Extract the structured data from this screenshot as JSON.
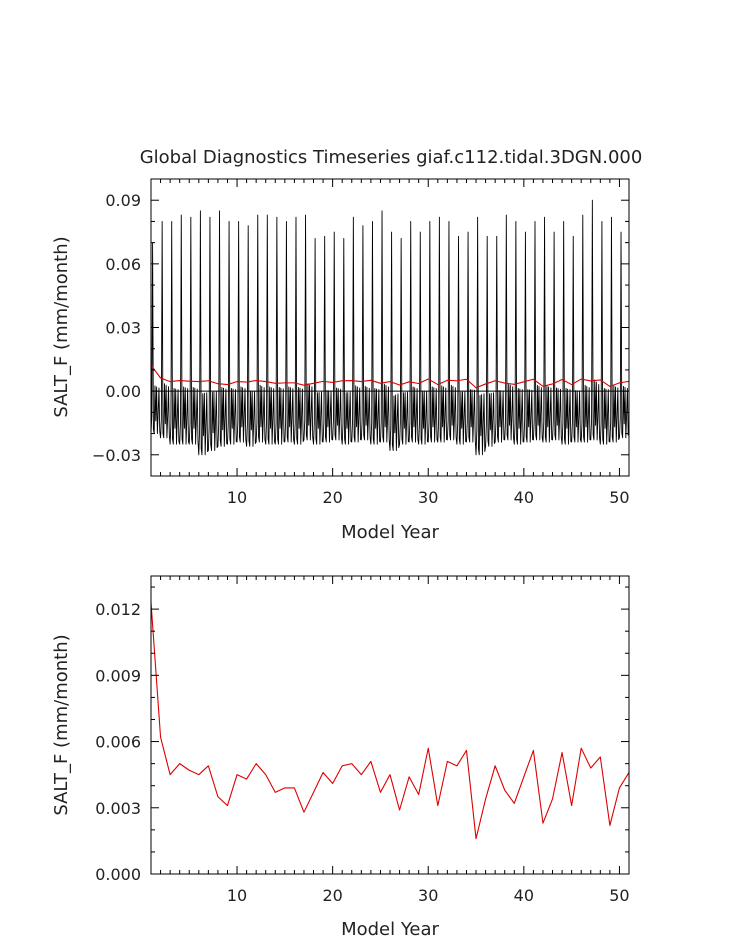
{
  "chart_data": [
    {
      "type": "line",
      "title": "Global Diagnostics Timeseries giaf.c112.tidal.3DGN.000",
      "xlabel": "Model Year",
      "ylabel": "SALT_F (mm/month)",
      "xlim": [
        1,
        51
      ],
      "ylim": [
        -0.04,
        0.1
      ],
      "xticks": [
        10,
        20,
        30,
        40,
        50
      ],
      "xtick_labels": [
        "10",
        "20",
        "30",
        "40",
        "50"
      ],
      "yticks": [
        -0.03,
        0.0,
        0.03,
        0.06,
        0.09
      ],
      "ytick_labels": [
        "−0.03",
        "0.00",
        "0.03",
        "0.06",
        "0.09"
      ],
      "zero_line": true,
      "series": [
        {
          "style": "monthly",
          "color": "#000000",
          "x_start": 1,
          "months_per_year": 12,
          "annual_peaks": [
            0.07,
            0.08,
            0.08,
            0.083,
            0.082,
            0.085,
            0.082,
            0.085,
            0.08,
            0.08,
            0.078,
            0.083,
            0.083,
            0.082,
            0.08,
            0.082,
            0.083,
            0.072,
            0.073,
            0.075,
            0.072,
            0.082,
            0.078,
            0.08,
            0.085,
            0.075,
            0.072,
            0.08,
            0.075,
            0.08,
            0.082,
            0.08,
            0.073,
            0.075,
            0.082,
            0.073,
            0.073,
            0.083,
            0.08,
            0.075,
            0.08,
            0.082,
            0.075,
            0.08,
            0.073,
            0.083,
            0.09,
            0.08,
            0.082,
            0.075
          ],
          "annual_troughs": [
            -0.02,
            -0.022,
            -0.025,
            -0.025,
            -0.025,
            -0.03,
            -0.028,
            -0.026,
            -0.025,
            -0.024,
            -0.026,
            -0.024,
            -0.025,
            -0.025,
            -0.024,
            -0.025,
            -0.023,
            -0.025,
            -0.024,
            -0.023,
            -0.025,
            -0.024,
            -0.023,
            -0.025,
            -0.024,
            -0.028,
            -0.025,
            -0.024,
            -0.025,
            -0.024,
            -0.024,
            -0.023,
            -0.025,
            -0.024,
            -0.03,
            -0.026,
            -0.024,
            -0.023,
            -0.025,
            -0.024,
            -0.023,
            -0.024,
            -0.023,
            -0.025,
            -0.024,
            -0.024,
            -0.023,
            -0.025,
            -0.024,
            -0.022
          ],
          "secondary_peak_frac": 0.25
        },
        {
          "style": "annual",
          "color": "#dd0000",
          "x": [
            1,
            2,
            3,
            4,
            5,
            6,
            7,
            8,
            9,
            10,
            11,
            12,
            13,
            14,
            15,
            16,
            17,
            18,
            19,
            20,
            21,
            22,
            23,
            24,
            25,
            26,
            27,
            28,
            29,
            30,
            31,
            32,
            33,
            34,
            35,
            36,
            37,
            38,
            39,
            40,
            41,
            42,
            43,
            44,
            45,
            46,
            47,
            48,
            49,
            50,
            51
          ],
          "values": [
            0.0123,
            0.0062,
            0.0045,
            0.005,
            0.0047,
            0.0045,
            0.0049,
            0.0035,
            0.0031,
            0.0045,
            0.0043,
            0.005,
            0.0045,
            0.0037,
            0.0039,
            0.0039,
            0.0028,
            0.0037,
            0.0046,
            0.0041,
            0.0049,
            0.005,
            0.0045,
            0.0051,
            0.0037,
            0.0045,
            0.0029,
            0.0044,
            0.0036,
            0.0057,
            0.0031,
            0.0051,
            0.0049,
            0.0056,
            0.0016,
            0.0034,
            0.0049,
            0.0038,
            0.0032,
            0.0044,
            0.0056,
            0.0023,
            0.0034,
            0.0055,
            0.0031,
            0.0057,
            0.0048,
            0.0053,
            0.0022,
            0.0039,
            0.0046
          ]
        }
      ]
    },
    {
      "type": "line",
      "title": "",
      "xlabel": "Model Year",
      "ylabel": "SALT_F (mm/month)",
      "xlim": [
        1,
        51
      ],
      "ylim": [
        0,
        0.0135
      ],
      "xticks": [
        10,
        20,
        30,
        40,
        50
      ],
      "xtick_labels": [
        "10",
        "20",
        "30",
        "40",
        "50"
      ],
      "yticks": [
        0,
        0.003,
        0.006,
        0.009,
        0.012
      ],
      "ytick_labels": [
        "0.000",
        "0.003",
        "0.006",
        "0.009",
        "0.012"
      ],
      "zero_line": false,
      "series": [
        {
          "style": "annual",
          "color": "#dd0000",
          "x": [
            1,
            2,
            3,
            4,
            5,
            6,
            7,
            8,
            9,
            10,
            11,
            12,
            13,
            14,
            15,
            16,
            17,
            18,
            19,
            20,
            21,
            22,
            23,
            24,
            25,
            26,
            27,
            28,
            29,
            30,
            31,
            32,
            33,
            34,
            35,
            36,
            37,
            38,
            39,
            40,
            41,
            42,
            43,
            44,
            45,
            46,
            47,
            48,
            49,
            50,
            51
          ],
          "values": [
            0.0123,
            0.0062,
            0.0045,
            0.005,
            0.0047,
            0.0045,
            0.0049,
            0.0035,
            0.0031,
            0.0045,
            0.0043,
            0.005,
            0.0045,
            0.0037,
            0.0039,
            0.0039,
            0.0028,
            0.0037,
            0.0046,
            0.0041,
            0.0049,
            0.005,
            0.0045,
            0.0051,
            0.0037,
            0.0045,
            0.0029,
            0.0044,
            0.0036,
            0.0057,
            0.0031,
            0.0051,
            0.0049,
            0.0056,
            0.0016,
            0.0034,
            0.0049,
            0.0038,
            0.0032,
            0.0044,
            0.0056,
            0.0023,
            0.0034,
            0.0055,
            0.0031,
            0.0057,
            0.0048,
            0.0053,
            0.0022,
            0.0039,
            0.0046
          ]
        }
      ]
    }
  ]
}
